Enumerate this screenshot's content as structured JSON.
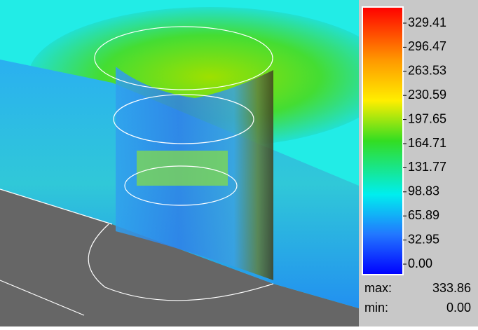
{
  "colorbar": {
    "ticks": [
      "329.41",
      "296.47",
      "263.53",
      "230.59",
      "197.65",
      "164.71",
      "131.77",
      "98.83",
      "65.89",
      "32.95",
      "0.00"
    ],
    "max_label": "max:",
    "max_value": "333.86",
    "min_label": "min:",
    "min_value": "0.00"
  }
}
